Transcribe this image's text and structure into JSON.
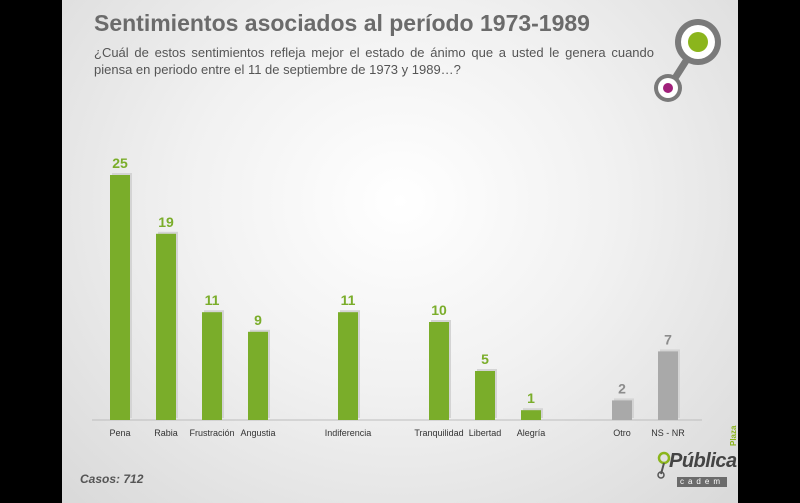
{
  "title": "Sentimientos asociados al período 1973-1989",
  "subtitle": "¿Cuál de estos sentimientos refleja mejor el estado de ánimo que a usted le genera cuando piensa  en periodo entre el 11 de septiembre de 1973 y 1989…?",
  "footer": {
    "cases": "Casos: 712"
  },
  "brand": {
    "plaza": "Plaza",
    "publica": "Pública",
    "cadem": "cadem"
  },
  "colors": {
    "green": "#7aad2a",
    "gray": "#a9a9a9",
    "label_green": "#7aad2a",
    "label_gray": "#8c8c8c"
  },
  "chart_data": {
    "type": "bar",
    "categories": [
      "Pena",
      "Rabia",
      "Frustración",
      "Angustia",
      "Indiferencia",
      "Tranquilidad",
      "Libertad",
      "Alegría",
      "Otro",
      "NS - NR"
    ],
    "values": [
      25,
      19,
      11,
      9,
      11,
      10,
      5,
      1,
      2,
      7
    ],
    "bar_colors": [
      "green",
      "green",
      "green",
      "green",
      "green",
      "green",
      "green",
      "green",
      "gray",
      "gray"
    ],
    "ylim": [
      0,
      25
    ]
  }
}
